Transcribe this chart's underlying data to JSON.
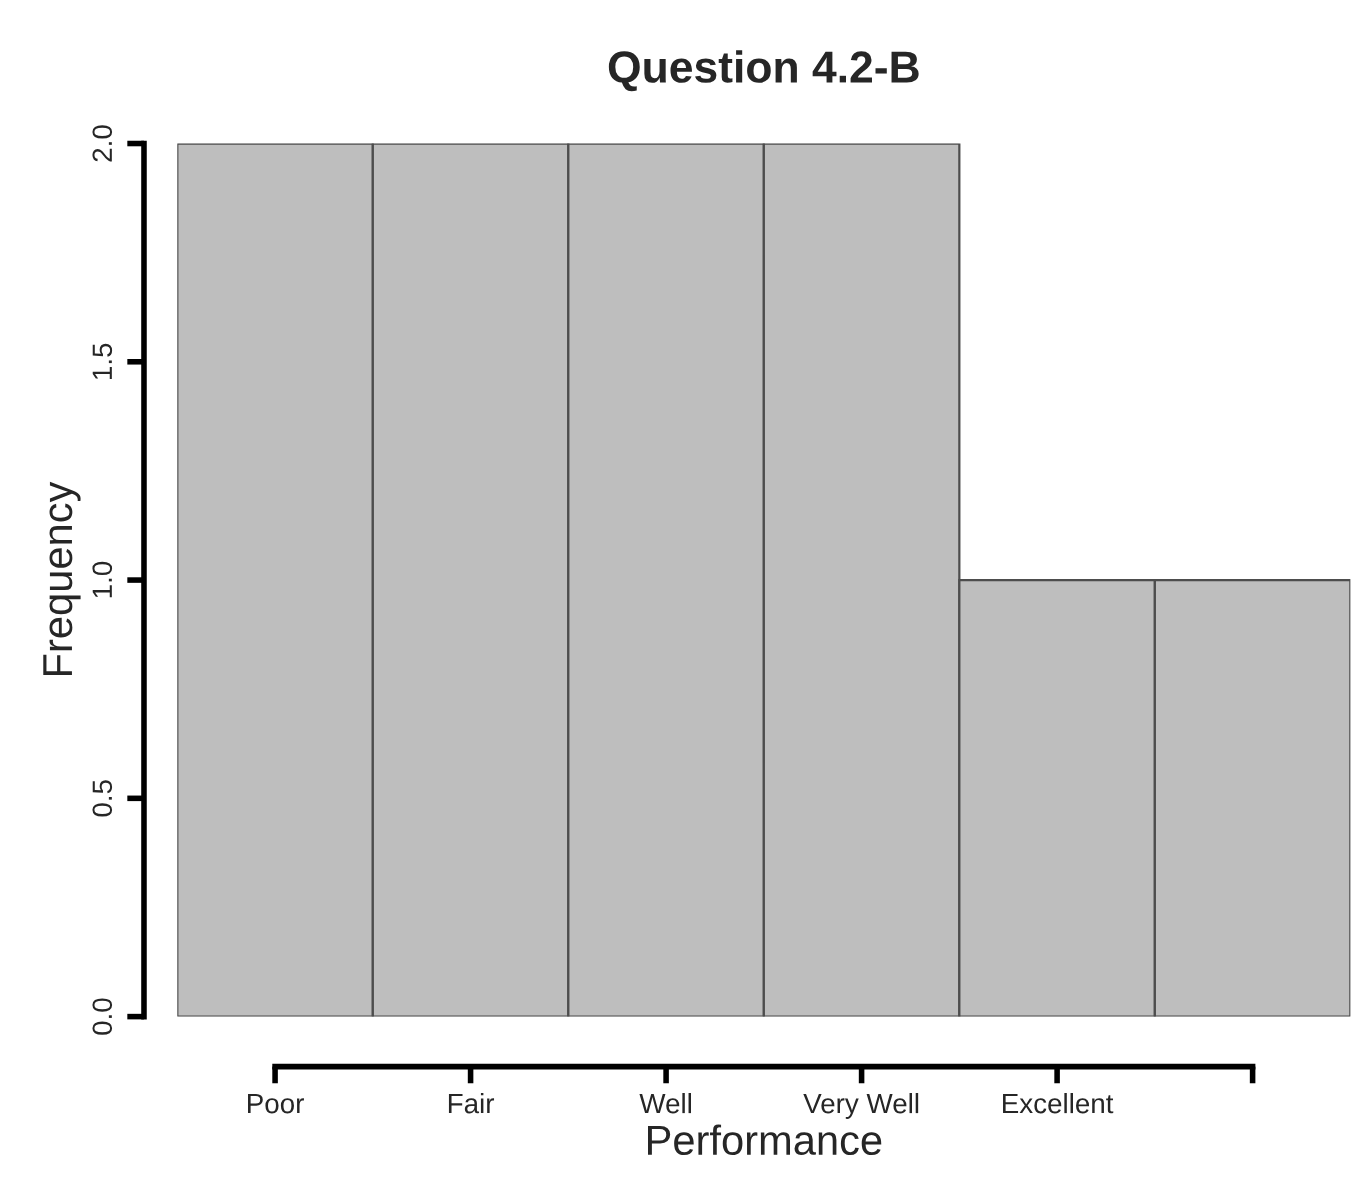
{
  "chart_data": {
    "type": "bar",
    "title": "Question 4.2-B",
    "xlabel": "Performance",
    "ylabel": "Frequency",
    "categories": [
      "Poor",
      "Fair",
      "Well",
      "Very Well",
      "Excellent",
      null
    ],
    "values": [
      2,
      2,
      2,
      2,
      1,
      1
    ],
    "color": "#bebebe",
    "ylim": [
      0,
      2
    ],
    "yticks": [
      {
        "value": 0,
        "label": "0.0"
      },
      {
        "value": 0.5,
        "label": "0.5"
      },
      {
        "value": 1,
        "label": "1.0"
      },
      {
        "value": 1.5,
        "label": "1.5"
      },
      {
        "value": 2,
        "label": "2.0"
      }
    ],
    "grid": false,
    "legend": false
  }
}
